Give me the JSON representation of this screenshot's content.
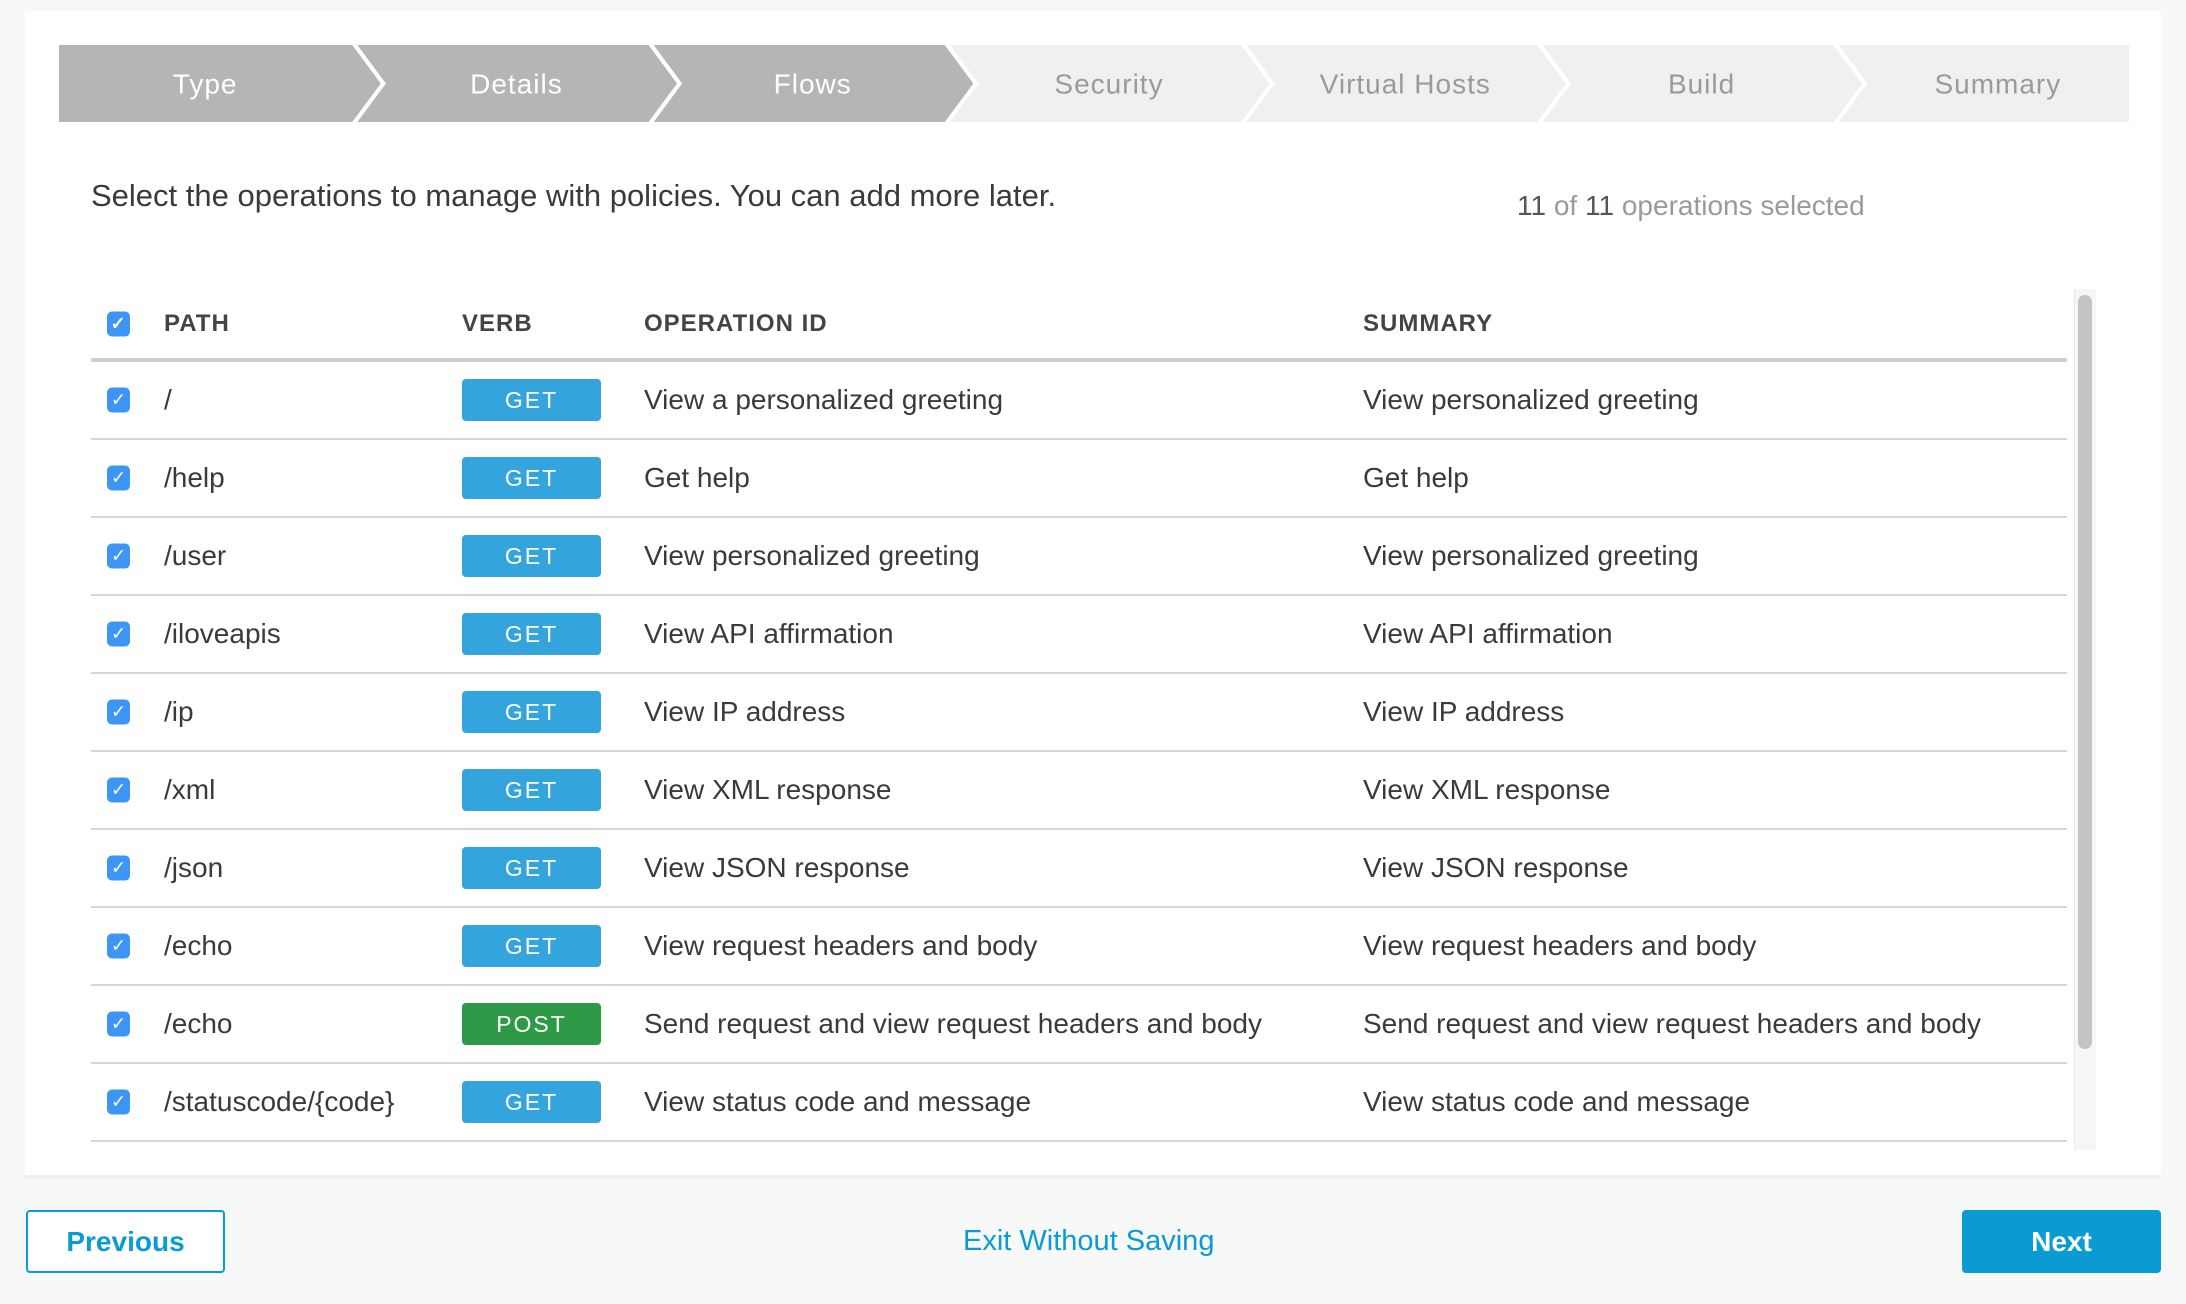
{
  "stepper": {
    "steps": [
      {
        "label": "Type",
        "state": "complete"
      },
      {
        "label": "Details",
        "state": "complete"
      },
      {
        "label": "Flows",
        "state": "current"
      },
      {
        "label": "Security",
        "state": "upcoming"
      },
      {
        "label": "Virtual Hosts",
        "state": "upcoming"
      },
      {
        "label": "Build",
        "state": "upcoming"
      },
      {
        "label": "Summary",
        "state": "upcoming"
      }
    ],
    "colors": {
      "complete": "#b5b5b5",
      "upcoming": "#f0f0f0",
      "complete_text": "#ffffff",
      "upcoming_text": "#9a9a9a"
    }
  },
  "instruction": "Select the operations to manage with policies. You can add more later.",
  "selection": {
    "selected": "11",
    "of": "of",
    "total": "11",
    "suffix": "operations selected"
  },
  "table": {
    "headers": {
      "path": "PATH",
      "verb": "VERB",
      "operation_id": "OPERATION ID",
      "summary": "SUMMARY"
    },
    "all_checked": true,
    "rows": [
      {
        "checked": true,
        "path": "/",
        "verb": "GET",
        "operation_id": "View a personalized greeting",
        "summary": "View personalized greeting"
      },
      {
        "checked": true,
        "path": "/help",
        "verb": "GET",
        "operation_id": "Get help",
        "summary": "Get help"
      },
      {
        "checked": true,
        "path": "/user",
        "verb": "GET",
        "operation_id": "View personalized greeting",
        "summary": "View personalized greeting"
      },
      {
        "checked": true,
        "path": "/iloveapis",
        "verb": "GET",
        "operation_id": "View API affirmation",
        "summary": "View API affirmation"
      },
      {
        "checked": true,
        "path": "/ip",
        "verb": "GET",
        "operation_id": "View IP address",
        "summary": "View IP address"
      },
      {
        "checked": true,
        "path": "/xml",
        "verb": "GET",
        "operation_id": "View XML response",
        "summary": "View XML response"
      },
      {
        "checked": true,
        "path": "/json",
        "verb": "GET",
        "operation_id": "View JSON response",
        "summary": "View JSON response"
      },
      {
        "checked": true,
        "path": "/echo",
        "verb": "GET",
        "operation_id": "View request headers and body",
        "summary": "View request headers and body"
      },
      {
        "checked": true,
        "path": "/echo",
        "verb": "POST",
        "operation_id": "Send request and view request headers and body",
        "summary": "Send request and view request headers and body"
      },
      {
        "checked": true,
        "path": "/statuscode/{code}",
        "verb": "GET",
        "operation_id": "View status code and message",
        "summary": "View status code and message"
      }
    ],
    "verb_colors": {
      "GET": "#34a4dc",
      "POST": "#2e9a48"
    }
  },
  "footer": {
    "previous": "Previous",
    "exit": "Exit Without Saving",
    "next": "Next"
  },
  "icons": {
    "checkbox": "checkmark-icon"
  }
}
